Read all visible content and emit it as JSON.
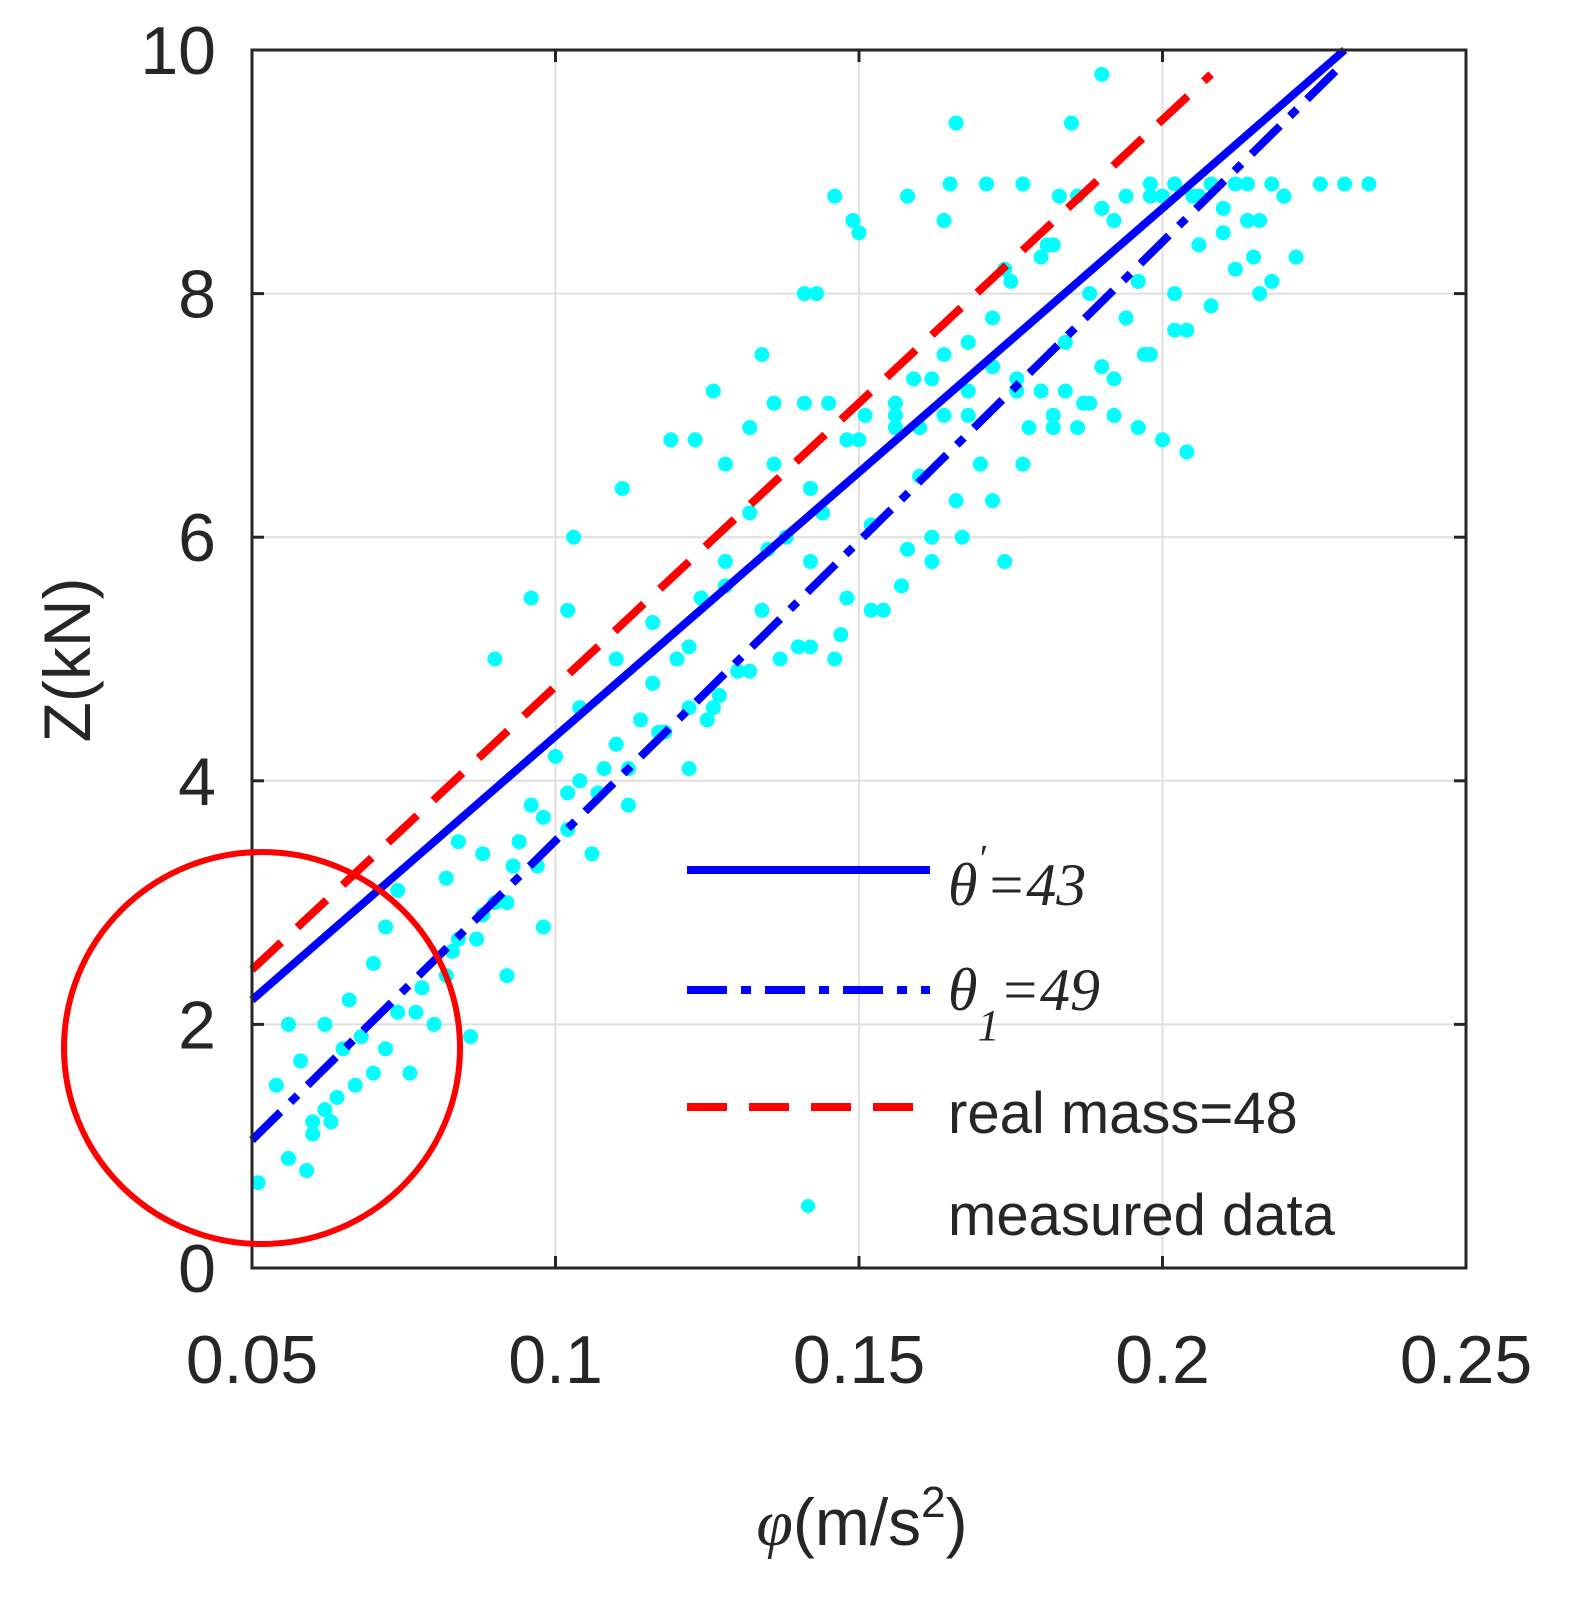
{
  "chart_data": {
    "type": "scatter",
    "xlabel_symbol": "φ",
    "xlabel_unit_pre": "(m/s",
    "xlabel_unit_sup": "2",
    "xlabel_unit_post": ")",
    "ylabel": "Z(kN)",
    "xlim": [
      0.05,
      0.25
    ],
    "ylim": [
      0,
      10
    ],
    "xticks": [
      0.05,
      0.1,
      0.15,
      0.2,
      0.25
    ],
    "xtick_labels": [
      "0.05",
      "0.1",
      "0.15",
      "0.2",
      "0.25"
    ],
    "yticks": [
      0,
      2,
      4,
      6,
      8,
      10
    ],
    "ytick_labels": [
      "0",
      "2",
      "4",
      "6",
      "8",
      "10"
    ],
    "grid": true,
    "legend_position": "bottom-right",
    "colors": {
      "line_solid": "#0000FF",
      "line_dashdot": "#0000FF",
      "line_dashed": "#FF0000",
      "points": "#00FFFF",
      "highlight_circle": "#FF0000"
    },
    "series": [
      {
        "name": "θ'=43",
        "legend_symbol": "θ",
        "legend_mark": "′",
        "legend_value": "=43",
        "style": "solid",
        "x": [
          0.05,
          0.23
        ],
        "y": [
          2.2,
          10.0
        ]
      },
      {
        "name": "θ1=49",
        "legend_symbol": "θ",
        "legend_sub": "1",
        "legend_value": "=49",
        "style": "dashdot",
        "x": [
          0.05,
          0.23
        ],
        "y": [
          1.05,
          9.9
        ]
      },
      {
        "name": "real mass=48",
        "legend_text": "real mass=48",
        "style": "dashed",
        "x": [
          0.05,
          0.208
        ],
        "y": [
          2.45,
          9.8
        ]
      },
      {
        "name": "measured data",
        "legend_text": "measured data",
        "style": "markers",
        "x": [
          0.051,
          0.054,
          0.056,
          0.058,
          0.06,
          0.062,
          0.062,
          0.065,
          0.066,
          0.068,
          0.07,
          0.072,
          0.074,
          0.076,
          0.078,
          0.08,
          0.082,
          0.084,
          0.086,
          0.088,
          0.09,
          0.092,
          0.094,
          0.096,
          0.098,
          0.1,
          0.102,
          0.104,
          0.106,
          0.108,
          0.11,
          0.112,
          0.114,
          0.116,
          0.118,
          0.12,
          0.122,
          0.124,
          0.126,
          0.128,
          0.13,
          0.132,
          0.134,
          0.136,
          0.138,
          0.14,
          0.142,
          0.144,
          0.146,
          0.148,
          0.15,
          0.152,
          0.154,
          0.156,
          0.158,
          0.16,
          0.162,
          0.164,
          0.166,
          0.168,
          0.17,
          0.172,
          0.174,
          0.176,
          0.178,
          0.18,
          0.182,
          0.184,
          0.186,
          0.188,
          0.19,
          0.192,
          0.194,
          0.196,
          0.198,
          0.2,
          0.202,
          0.204,
          0.206,
          0.208,
          0.21,
          0.212,
          0.214,
          0.216,
          0.218,
          0.22,
          0.222,
          0.226,
          0.23,
          0.234,
          0.056,
          0.06,
          0.064,
          0.07,
          0.074,
          0.078,
          0.083,
          0.088,
          0.093,
          0.098,
          0.104,
          0.11,
          0.116,
          0.122,
          0.128,
          0.135,
          0.142,
          0.148,
          0.156,
          0.162,
          0.168,
          0.175,
          0.182,
          0.19,
          0.198,
          0.205,
          0.123,
          0.128,
          0.132,
          0.136,
          0.141,
          0.145,
          0.151,
          0.156,
          0.16,
          0.164,
          0.168,
          0.172,
          0.176,
          0.18,
          0.184,
          0.188,
          0.192,
          0.196,
          0.2,
          0.204,
          0.143,
          0.15,
          0.158,
          0.165,
          0.171,
          0.177,
          0.183,
          0.186,
          0.19,
          0.194,
          0.198,
          0.202,
          0.206,
          0.208,
          0.21,
          0.212,
          0.214,
          0.215,
          0.216,
          0.218,
          0.059,
          0.063,
          0.067,
          0.072,
          0.077,
          0.082,
          0.087,
          0.092,
          0.097,
          0.102,
          0.107,
          0.112,
          0.117,
          0.122,
          0.127,
          0.132,
          0.137,
          0.142,
          0.147,
          0.152,
          0.157,
          0.162,
          0.167,
          0.172,
          0.177,
          0.182,
          0.187,
          0.192,
          0.197,
          0.202,
          0.084,
          0.09,
          0.096,
          0.103,
          0.111,
          0.119,
          0.126,
          0.134,
          0.141,
          0.146,
          0.149,
          0.159,
          0.166,
          0.174,
          0.181,
          0.185,
          0.19,
          0.164,
          0.125,
          0.102
        ],
        "y": [
          0.7,
          1.5,
          2.0,
          1.7,
          1.1,
          1.3,
          2.0,
          1.8,
          2.2,
          1.9,
          2.5,
          2.8,
          3.1,
          1.6,
          2.3,
          2.0,
          3.2,
          2.7,
          1.9,
          3.4,
          3.0,
          2.4,
          3.5,
          3.8,
          2.8,
          4.2,
          3.9,
          4.6,
          3.4,
          4.1,
          5.0,
          3.8,
          4.5,
          5.3,
          4.4,
          5.0,
          4.1,
          5.5,
          4.6,
          5.8,
          4.9,
          6.2,
          5.4,
          6.6,
          6.0,
          5.1,
          5.8,
          6.2,
          5.0,
          5.5,
          6.8,
          6.1,
          5.4,
          7.1,
          5.9,
          6.5,
          6.0,
          7.5,
          6.3,
          7.0,
          6.6,
          7.8,
          5.8,
          7.2,
          6.9,
          8.3,
          7.0,
          7.6,
          6.9,
          8.0,
          7.4,
          8.6,
          7.8,
          8.1,
          7.5,
          8.8,
          8.0,
          7.7,
          8.4,
          7.9,
          8.5,
          8.2,
          8.9,
          8.6,
          8.1,
          8.8,
          8.3,
          8.9,
          8.9,
          8.9,
          0.9,
          1.2,
          1.4,
          1.6,
          2.1,
          2.3,
          2.6,
          2.9,
          3.3,
          3.7,
          4.0,
          4.3,
          4.8,
          5.1,
          5.6,
          5.9,
          6.4,
          6.8,
          7.0,
          7.3,
          7.6,
          8.1,
          8.4,
          8.7,
          8.9,
          8.8,
          6.8,
          6.6,
          6.9,
          7.1,
          7.1,
          7.1,
          7.0,
          6.9,
          6.9,
          7.0,
          7.2,
          7.4,
          7.3,
          7.2,
          7.2,
          7.1,
          7.0,
          6.9,
          6.8,
          6.7,
          8.0,
          8.5,
          8.8,
          8.9,
          8.9,
          8.9,
          8.8,
          8.8,
          8.7,
          8.8,
          8.8,
          8.9,
          8.8,
          8.9,
          8.7,
          8.9,
          8.6,
          8.3,
          8.0,
          8.9,
          0.8,
          1.2,
          1.5,
          1.8,
          2.1,
          2.4,
          2.7,
          3.0,
          3.3,
          3.6,
          3.9,
          4.1,
          4.4,
          4.6,
          4.7,
          4.9,
          5.0,
          5.1,
          5.2,
          5.4,
          5.6,
          5.8,
          6.0,
          6.3,
          6.6,
          6.9,
          7.1,
          7.3,
          7.5,
          7.7,
          3.5,
          5.0,
          5.5,
          6.0,
          6.4,
          6.8,
          7.2,
          7.5,
          8.0,
          8.8,
          8.6,
          7.3,
          9.4,
          8.2,
          8.4,
          9.4,
          9.8,
          8.6,
          4.5,
          5.4
        ]
      }
    ]
  }
}
